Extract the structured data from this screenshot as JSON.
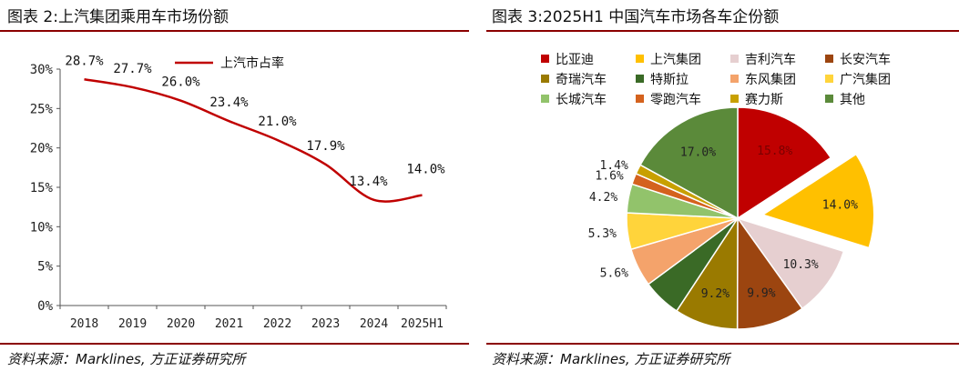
{
  "left": {
    "title": "图表 2:上汽集团乘用车市场份额",
    "source": "资料来源：Marklines, 方正证券研究所"
  },
  "right": {
    "title": "图表 3:2025H1 中国汽车市场各车企份额",
    "source": "资料来源：Marklines, 方正证券研究所"
  },
  "chart_data": [
    {
      "type": "line",
      "title": "图表 2:上汽集团乘用车市场份额",
      "categories": [
        "2018",
        "2019",
        "2020",
        "2021",
        "2022",
        "2023",
        "2024",
        "2025H1"
      ],
      "series": [
        {
          "name": "上汽市占率",
          "values": [
            28.7,
            27.7,
            26.0,
            23.4,
            21.0,
            17.9,
            13.4,
            14.0
          ],
          "labels": [
            "28.7%",
            "27.7%",
            "26.0%",
            "23.4%",
            "21.0%",
            "17.9%",
            "13.4%",
            "14.0%"
          ],
          "color": "#c00000"
        }
      ],
      "ylim": [
        0,
        30
      ],
      "yticks": [
        "0%",
        "5%",
        "10%",
        "15%",
        "20%",
        "25%",
        "30%"
      ],
      "grid": false,
      "legend": "top"
    },
    {
      "type": "pie",
      "title": "图表 3:2025H1 中国汽车市场各车企份额",
      "legend": "top",
      "slices": [
        {
          "name": "比亚迪",
          "value": 15.8,
          "label": "15.8%",
          "color": "#c00000",
          "explode": false
        },
        {
          "name": "上汽集团",
          "value": 14.0,
          "label": "14.0%",
          "color": "#ffc000",
          "explode": true
        },
        {
          "name": "吉利汽车",
          "value": 10.3,
          "label": "10.3%",
          "color": "#e6cfd0",
          "explode": false
        },
        {
          "name": "长安汽车",
          "value": 9.9,
          "label": "9.9%",
          "color": "#9c4510",
          "explode": false
        },
        {
          "name": "奇瑞汽车",
          "value": 9.2,
          "label": "9.2%",
          "color": "#9a7a00",
          "explode": false
        },
        {
          "name": "特斯拉",
          "value": 5.6,
          "label": "",
          "color": "#3a6a26",
          "explode": false
        },
        {
          "name": "东风集团",
          "value": 5.6,
          "label": "5.6%",
          "color": "#f4a36b",
          "explode": false
        },
        {
          "name": "广汽集团",
          "value": 5.3,
          "label": "5.3%",
          "color": "#ffd43b",
          "explode": false
        },
        {
          "name": "长城汽车",
          "value": 4.2,
          "label": "4.2%",
          "color": "#92c36b",
          "explode": false
        },
        {
          "name": "零跑汽车",
          "value": 1.6,
          "label": "1.6%",
          "color": "#d4621e",
          "explode": false
        },
        {
          "name": "赛力斯",
          "value": 1.4,
          "label": "1.4%",
          "color": "#c8a000",
          "explode": false
        },
        {
          "name": "其他",
          "value": 17.0,
          "label": "17.0%",
          "color": "#5b8a3a",
          "explode": false
        }
      ]
    }
  ]
}
